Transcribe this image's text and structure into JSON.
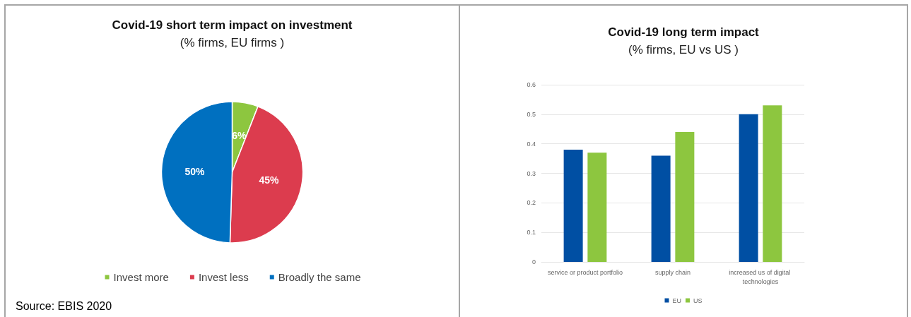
{
  "chart_data": [
    {
      "type": "pie",
      "title": "Covid-19 short term impact on investment",
      "subtitle": "(% firms, EU firms )",
      "categories": [
        "Invest more",
        "Invest less",
        "Broadly the same"
      ],
      "values": [
        6,
        45,
        50
      ],
      "colors": [
        "#8dc63f",
        "#dc3c4e",
        "#0070c0"
      ],
      "value_labels": [
        "6%",
        "45%",
        "50%"
      ],
      "legend": "bottom",
      "annotations": [
        "Source: EBIS 2020"
      ]
    },
    {
      "type": "bar",
      "title": "Covid-19 long term impact",
      "subtitle": "(% firms, EU vs US )",
      "categories": [
        "service or product portfolio",
        "supply chain",
        "increased us of digital technologies"
      ],
      "series": [
        {
          "name": "EU",
          "color": "#004fa3",
          "values": [
            0.38,
            0.36,
            0.5
          ]
        },
        {
          "name": "US",
          "color": "#8dc63f",
          "values": [
            0.37,
            0.44,
            0.53
          ]
        }
      ],
      "ylim": [
        0,
        0.6
      ],
      "yticks": [
        0,
        0.1,
        0.2,
        0.3,
        0.4,
        0.5,
        0.6
      ],
      "grid": "y",
      "legend": "bottom"
    }
  ]
}
